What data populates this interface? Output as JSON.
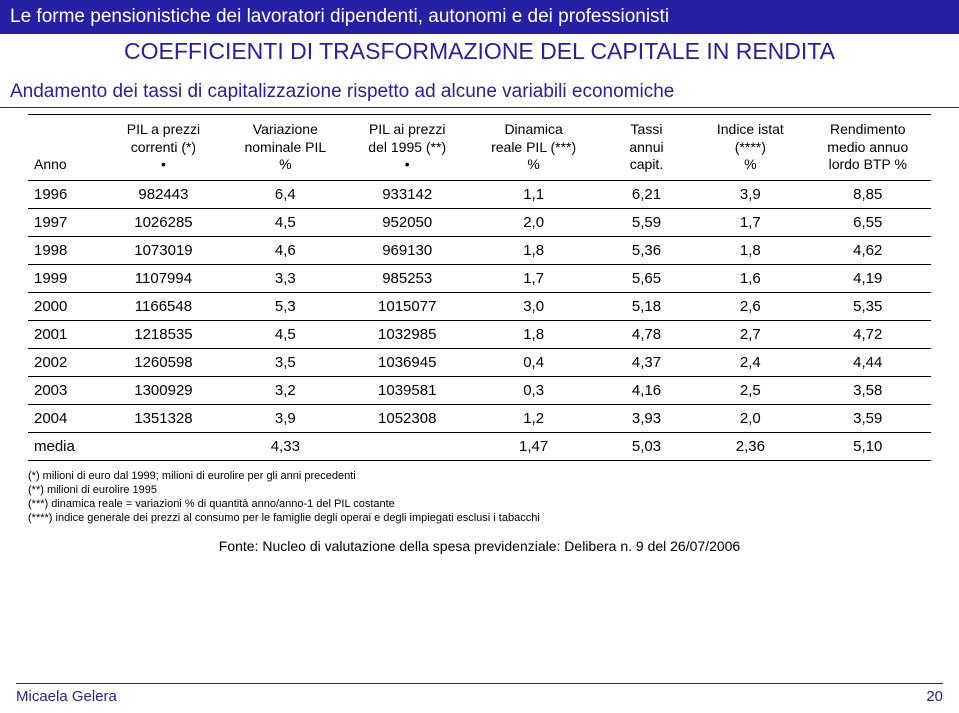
{
  "header": {
    "title": "Le forme pensionistiche dei lavoratori dipendenti, autonomi e dei professionisti",
    "subtitle": "COEFFICIENTI DI TRASFORMAZIONE DEL CAPITALE IN RENDITA",
    "subsection": "Andamento dei tassi di capitalizzazione rispetto ad alcune variabili economiche"
  },
  "table": {
    "columns": [
      {
        "label": "Anno"
      },
      {
        "label": "PIL a prezzi\ncorrenti (*)\n•"
      },
      {
        "label": "Variazione\nnominale PIL\n%"
      },
      {
        "label": "PIL ai prezzi\ndel 1995 (**)\n•"
      },
      {
        "label": "Dinamica\nreale PIL (***)\n%"
      },
      {
        "label": "Tassi\nannui\ncapit."
      },
      {
        "label": "Indice istat\n(****)\n%"
      },
      {
        "label": "Rendimento\nmedio annuo\nlordo BTP %"
      }
    ],
    "rows": [
      [
        "1996",
        "982443",
        "6,4",
        "933142",
        "1,1",
        "6,21",
        "3,9",
        "8,85"
      ],
      [
        "1997",
        "1026285",
        "4,5",
        "952050",
        "2,0",
        "5,59",
        "1,7",
        "6,55"
      ],
      [
        "1998",
        "1073019",
        "4,6",
        "969130",
        "1,8",
        "5,36",
        "1,8",
        "4,62"
      ],
      [
        "1999",
        "1107994",
        "3,3",
        "985253",
        "1,7",
        "5,65",
        "1,6",
        "4,19"
      ],
      [
        "2000",
        "1166548",
        "5,3",
        "1015077",
        "3,0",
        "5,18",
        "2,6",
        "5,35"
      ],
      [
        "2001",
        "1218535",
        "4,5",
        "1032985",
        "1,8",
        "4,78",
        "2,7",
        "4,72"
      ],
      [
        "2002",
        "1260598",
        "3,5",
        "1036945",
        "0,4",
        "4,37",
        "2,4",
        "4,44"
      ],
      [
        "2003",
        "1300929",
        "3,2",
        "1039581",
        "0,3",
        "4,16",
        "2,5",
        "3,58"
      ],
      [
        "2004",
        "1351328",
        "3,9",
        "1052308",
        "1,2",
        "3,93",
        "2,0",
        "3,59"
      ],
      [
        "media",
        "",
        "4,33",
        "",
        "1,47",
        "5,03",
        "2,36",
        "5,10"
      ]
    ]
  },
  "notes": {
    "n1": "(*) milioni di euro dal 1999; milioni di eurolire per gli anni precedenti",
    "n2": "(**) milioni di eurolire 1995",
    "n3": "(***) dinamica reale = variazioni % di quantità anno/anno-1 del PIL costante",
    "n4": "(****) indice generale dei prezzi al consumo per le famiglie degli operai e degli impiegati esclusi i tabacchi"
  },
  "source": "Fonte: Nucleo di valutazione della spesa previdenziale: Delibera n. 9 del 26/07/2006",
  "footer": {
    "author": "Micaela Gelera",
    "page": "20"
  },
  "style": {
    "brand_color": "#2520a4",
    "bg": "#ffffff",
    "text_color": "#000000",
    "col_widths_pct": [
      8,
      14,
      13,
      14,
      14,
      11,
      12,
      14
    ]
  }
}
